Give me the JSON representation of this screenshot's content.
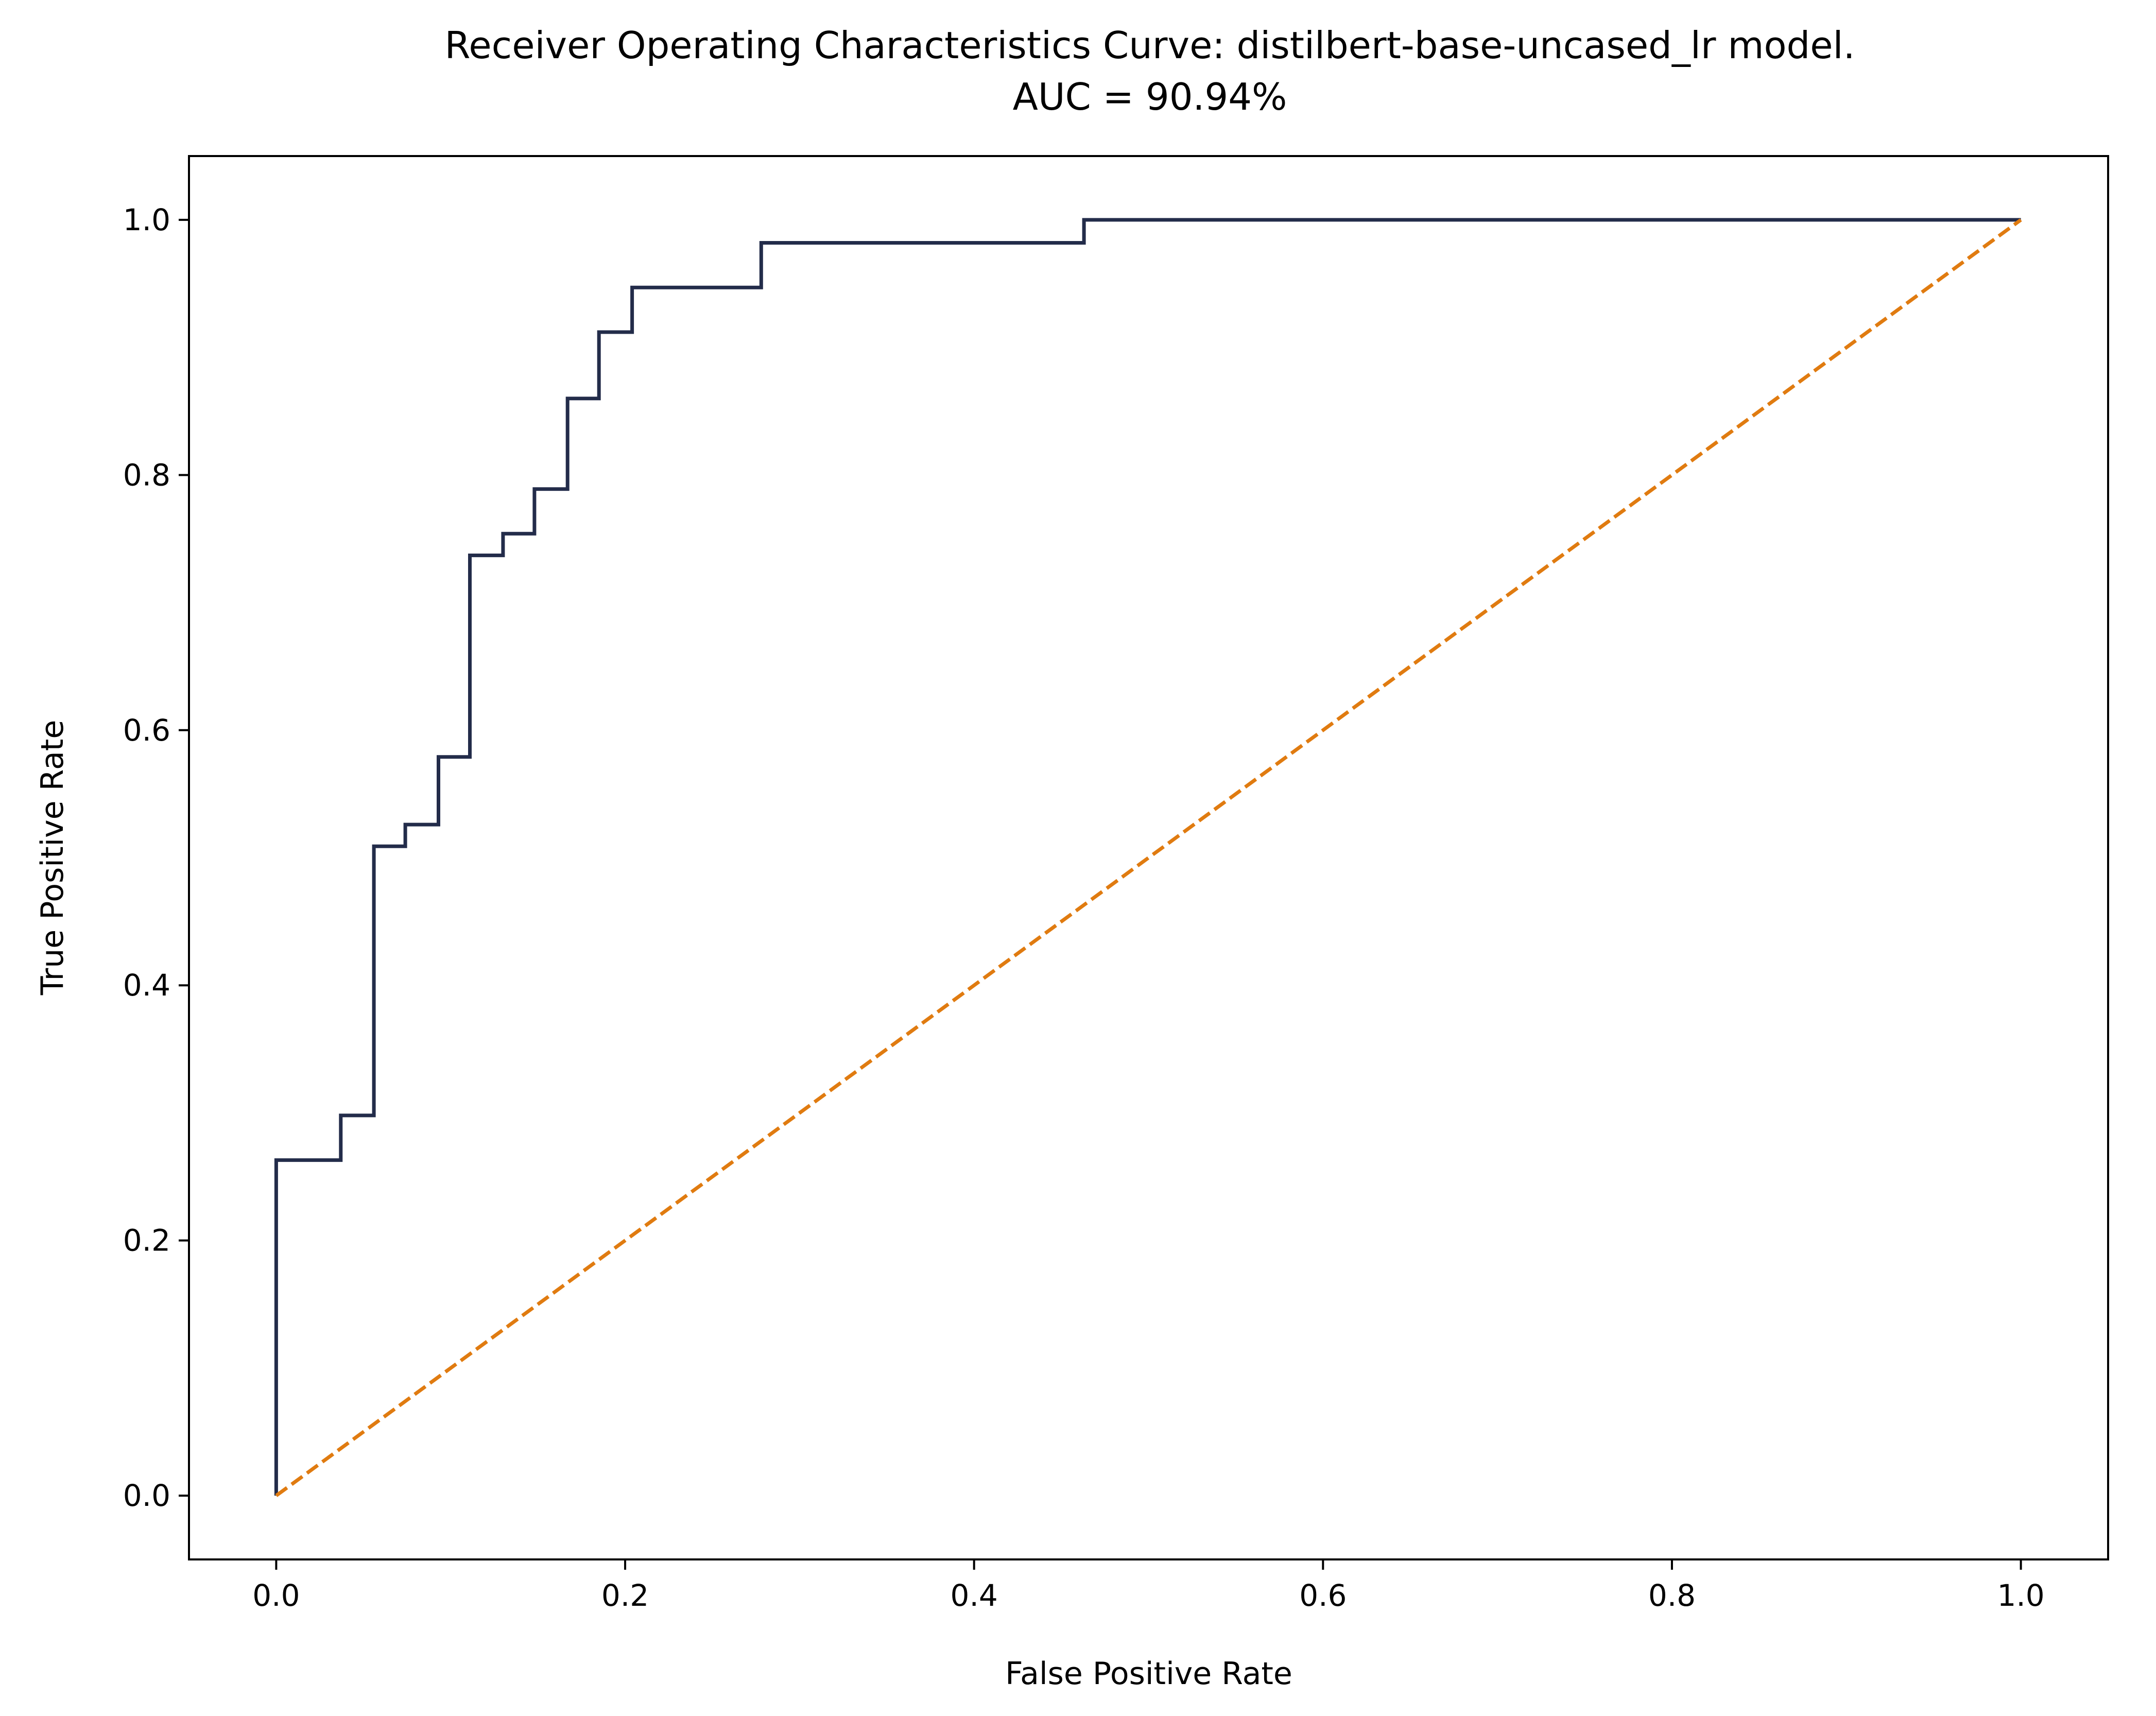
{
  "chart_data": {
    "type": "line",
    "title": "Receiver Operating Characteristics Curve: distilbert-base-uncased_lr model.",
    "subtitle": "AUC = 90.94%",
    "xlabel": "False Positive Rate",
    "ylabel": "True Positive Rate",
    "xlim": [
      -0.05,
      1.05
    ],
    "ylim": [
      -0.05,
      1.05
    ],
    "x_ticks": [
      "0.0",
      "0.2",
      "0.4",
      "0.6",
      "0.8",
      "1.0"
    ],
    "y_ticks": [
      "0.0",
      "0.2",
      "0.4",
      "0.6",
      "0.8",
      "1.0"
    ],
    "grid": false,
    "series": [
      {
        "style": "solid",
        "color": "#232c4a",
        "x": [
          0.0,
          0.0,
          0.037,
          0.037,
          0.056,
          0.056,
          0.074,
          0.074,
          0.093,
          0.093,
          0.111,
          0.111,
          0.13,
          0.13,
          0.148,
          0.148,
          0.167,
          0.167,
          0.185,
          0.185,
          0.204,
          0.204,
          0.278,
          0.278,
          0.463,
          0.463,
          1.0
        ],
        "y": [
          0.0,
          0.263,
          0.263,
          0.298,
          0.298,
          0.509,
          0.509,
          0.526,
          0.526,
          0.579,
          0.579,
          0.737,
          0.737,
          0.754,
          0.754,
          0.789,
          0.789,
          0.86,
          0.86,
          0.912,
          0.912,
          0.947,
          0.947,
          0.982,
          0.982,
          1.0,
          1.0
        ]
      },
      {
        "style": "dashed",
        "color": "#e07b10",
        "x": [
          0.0,
          1.0
        ],
        "y": [
          0.0,
          1.0
        ]
      }
    ]
  }
}
